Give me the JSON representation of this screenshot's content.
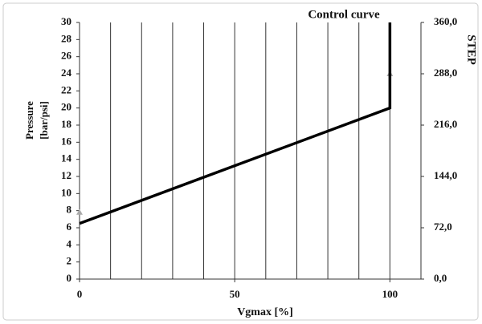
{
  "chart_data": {
    "type": "line",
    "title": "Control curve",
    "xlabel": "Vgmax [%]",
    "ylabel": [
      "Pressure",
      "[bar/psi]"
    ],
    "y2label": "STEP",
    "x": [
      0,
      100,
      100
    ],
    "series": [
      {
        "color": "#000000",
        "values": [
          6.5,
          20,
          30
        ]
      }
    ],
    "markers": {
      "color": "#aaaaaa",
      "x": [
        0,
        100
      ],
      "values": [
        7.8,
        24
      ]
    },
    "xlim": [
      0,
      110
    ],
    "xticks": [
      0,
      50,
      100
    ],
    "xgrid": [
      0,
      10,
      20,
      30,
      40,
      50,
      60,
      70,
      80,
      90,
      100,
      110
    ],
    "ylim": [
      0,
      30
    ],
    "yticks": [
      0,
      2,
      4,
      6,
      8,
      10,
      12,
      14,
      16,
      18,
      20,
      22,
      24,
      26,
      28,
      30
    ],
    "y2lim": [
      0,
      360
    ],
    "y2ticks": [
      {
        "value": 0,
        "label": "0,0"
      },
      {
        "value": 72,
        "label": "72,0"
      },
      {
        "value": 144,
        "label": "144,0"
      },
      {
        "value": 216,
        "label": "216,0"
      },
      {
        "value": 288,
        "label": "288,0"
      },
      {
        "value": 360,
        "label": "360,0"
      }
    ],
    "grid": true
  }
}
